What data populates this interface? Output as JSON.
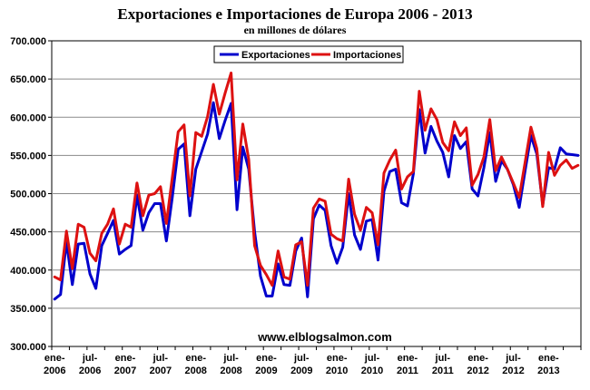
{
  "chart_data": {
    "type": "line",
    "title": "Exportaciones e Importaciones de Europa 2006 - 2013",
    "subtitle": "en millones de dólares",
    "watermark": "www.elblogsalmon.com",
    "xlabel": "",
    "ylabel": "",
    "ylim": [
      300000,
      700000
    ],
    "y_ticks": [
      "300.000",
      "350.000",
      "400.000",
      "450.000",
      "500.000",
      "550.000",
      "600.000",
      "650.000",
      "700.000"
    ],
    "x_ticks": [
      {
        "line1": "ene-",
        "line2": "2006"
      },
      {
        "line1": "jul-",
        "line2": "2006"
      },
      {
        "line1": "ene-",
        "line2": "2007"
      },
      {
        "line1": "jul-",
        "line2": "2007"
      },
      {
        "line1": "ene-",
        "line2": "2008"
      },
      {
        "line1": "jul-",
        "line2": "2008"
      },
      {
        "line1": "ene-",
        "line2": "2009"
      },
      {
        "line1": "jul-",
        "line2": "2009"
      },
      {
        "line1": "ene-",
        "line2": "2010"
      },
      {
        "line1": "jul-",
        "line2": "2010"
      },
      {
        "line1": "ene-",
        "line2": "2011"
      },
      {
        "line1": "jul-",
        "line2": "2011"
      },
      {
        "line1": "ene-",
        "line2": "2012"
      },
      {
        "line1": "jul-",
        "line2": "2012"
      },
      {
        "line1": "ene-",
        "line2": "2013"
      }
    ],
    "x_start": "2006-01",
    "grid": true,
    "legend_position": "top-center",
    "series": [
      {
        "name": "Exportaciones",
        "color": "#0000cc",
        "values": [
          362000,
          368000,
          437000,
          381000,
          434000,
          435000,
          395000,
          376000,
          432000,
          448000,
          465000,
          421000,
          427000,
          432000,
          498000,
          452000,
          475000,
          487000,
          487000,
          438000,
          495000,
          558000,
          565000,
          471000,
          532000,
          555000,
          578000,
          619000,
          572000,
          596000,
          618000,
          479000,
          561000,
          532000,
          450000,
          392000,
          366000,
          366000,
          408000,
          381000,
          380000,
          425000,
          442000,
          365000,
          467000,
          485000,
          478000,
          432000,
          409000,
          430000,
          500000,
          446000,
          427000,
          464000,
          466000,
          413000,
          503000,
          529000,
          532000,
          488000,
          484000,
          526000,
          610000,
          553000,
          588000,
          569000,
          554000,
          522000,
          576000,
          559000,
          568000,
          506000,
          497000,
          534000,
          580000,
          516000,
          543000,
          532000,
          512000,
          482000,
          530000,
          576000,
          552000,
          485000,
          534000,
          532000,
          560000,
          552000,
          551000,
          550000
        ]
      },
      {
        "name": "Importaciones",
        "color": "#dd1111",
        "values": [
          391000,
          387000,
          451000,
          402000,
          460000,
          456000,
          422000,
          412000,
          448000,
          460000,
          480000,
          434000,
          460000,
          456000,
          514000,
          471000,
          498000,
          500000,
          509000,
          461000,
          521000,
          581000,
          590000,
          497000,
          580000,
          575000,
          601000,
          643000,
          604000,
          632000,
          658000,
          518000,
          591000,
          545000,
          432000,
          406000,
          394000,
          380000,
          425000,
          391000,
          388000,
          433000,
          437000,
          380000,
          481000,
          493000,
          490000,
          447000,
          441000,
          438000,
          519000,
          473000,
          452000,
          482000,
          475000,
          433000,
          527000,
          544000,
          557000,
          506000,
          522000,
          529000,
          634000,
          583000,
          611000,
          597000,
          567000,
          556000,
          594000,
          576000,
          586000,
          511000,
          525000,
          548000,
          597000,
          530000,
          548000,
          532000,
          514000,
          495000,
          541000,
          587000,
          559000,
          483000,
          554000,
          524000,
          537000,
          544000,
          533000,
          537000
        ]
      }
    ]
  }
}
